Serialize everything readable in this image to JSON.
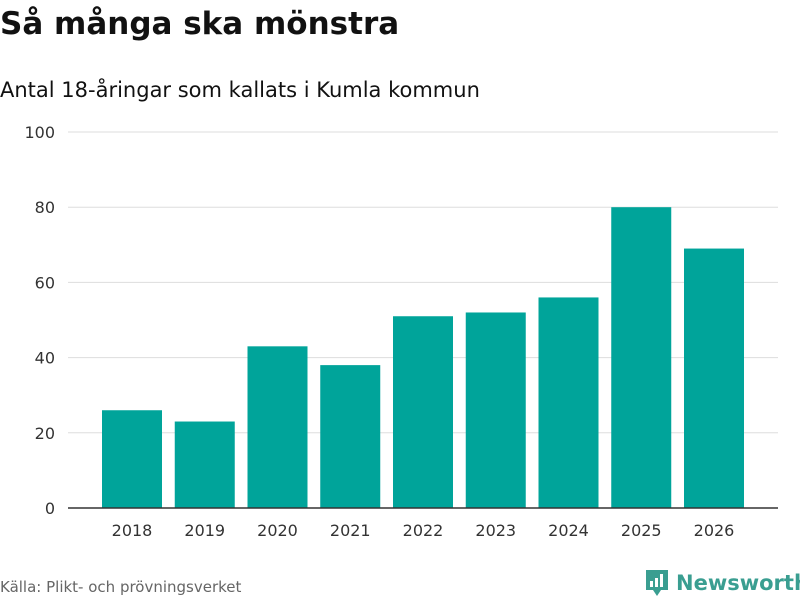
{
  "chart_data": {
    "type": "bar",
    "title": "Så många ska mönstra",
    "subtitle": "Antal 18-åringar som kallats i Kumla kommun",
    "categories": [
      "2018",
      "2019",
      "2020",
      "2021",
      "2022",
      "2023",
      "2024",
      "2025",
      "2026"
    ],
    "values": [
      26,
      23,
      43,
      38,
      51,
      52,
      56,
      80,
      69
    ],
    "ylim": [
      0,
      100
    ],
    "yticks": [
      "0",
      "20",
      "40",
      "60",
      "80",
      "100"
    ],
    "xlabel": "",
    "ylabel": "",
    "grid": true,
    "bar_color": "#00a49a"
  },
  "footer": {
    "source": "Källa: Plikt- och prövningsverket",
    "brand": "Newsworthy"
  }
}
